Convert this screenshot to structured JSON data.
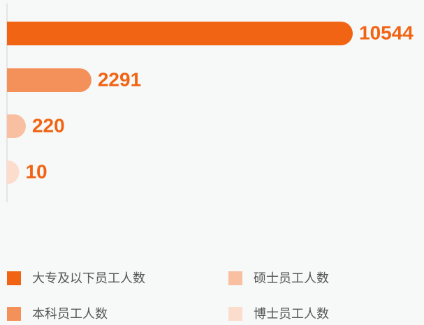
{
  "chart_data": {
    "type": "bar",
    "orientation": "horizontal",
    "categories": [
      "大专及以下员工人数",
      "本科员工人数",
      "硕士员工人数",
      "博士员工人数"
    ],
    "values": [
      10544,
      2291,
      220,
      10
    ],
    "colors": [
      "#f06414",
      "#f4905a",
      "#f8c0a0",
      "#fcdccc"
    ]
  }
}
